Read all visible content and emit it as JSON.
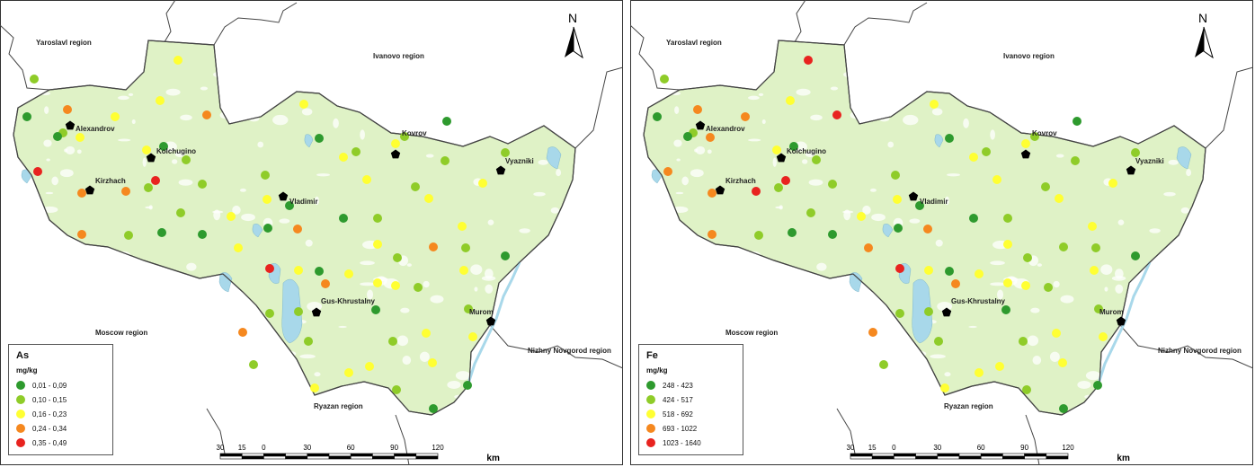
{
  "maps": [
    {
      "id": "left",
      "legend": {
        "title": "As",
        "unit": "mg/kg",
        "classes": [
          {
            "label": "0,01 - 0,09",
            "color": "#2e9a2e"
          },
          {
            "label": "0,10 - 0,15",
            "color": "#8fcc29"
          },
          {
            "label": "0,16 - 0,23",
            "color": "#ffff33"
          },
          {
            "label": "0,24 - 0,34",
            "color": "#f5881f"
          },
          {
            "label": "0,35 - 0,49",
            "color": "#e8231f"
          }
        ]
      }
    },
    {
      "id": "right",
      "legend": {
        "title": "Fe",
        "unit": "mg/kg",
        "classes": [
          {
            "label": "248 - 423",
            "color": "#2e9a2e"
          },
          {
            "label": "424 - 517",
            "color": "#8fcc29"
          },
          {
            "label": "518 - 692",
            "color": "#ffff33"
          },
          {
            "label": "693 - 1022",
            "color": "#f5881f"
          },
          {
            "label": "1023 - 1640",
            "color": "#e8231f"
          }
        ]
      }
    }
  ],
  "region_labels": {
    "yaroslavl": "Yaroslavl region",
    "ivanovo": "Ivanovo region",
    "moscow": "Moscow region",
    "nizhny": "Nizhny Novgorod region",
    "ryazan": "Ryazan region"
  },
  "cities": {
    "alexandrov": "Alexandrov",
    "kolchugino": "Kolchugino",
    "kovrov": "Kovrov",
    "vyazniki": "Vyazniki",
    "kirzhach": "Kirzhach",
    "vladimir": "Vladimir",
    "gus": "Gus-Khrustalny",
    "murom": "Murom"
  },
  "north_arrow": "N",
  "scale_bar": {
    "ticks": [
      "30",
      "15",
      "0",
      "30",
      "60",
      "90",
      "120"
    ],
    "unit": "km"
  },
  "colors": {
    "land": "#dff2c6",
    "water": "#a8d8ea",
    "border": "#444444"
  },
  "sample_classes": {
    "left": [
      2,
      1,
      2,
      1,
      3,
      4,
      3,
      3,
      3,
      4,
      1,
      2,
      3,
      5,
      4,
      4,
      5,
      2,
      2,
      2,
      3,
      4,
      2,
      1,
      1,
      3,
      1,
      4,
      3,
      1,
      2,
      3,
      3,
      3,
      2,
      1,
      2,
      1,
      2,
      3,
      2,
      2,
      3,
      3,
      2,
      3,
      3,
      3,
      3,
      1,
      2,
      4,
      2,
      5,
      3,
      1,
      4,
      2,
      2,
      1,
      3,
      2,
      2,
      3,
      1,
      3,
      1,
      3,
      3,
      3,
      2,
      2,
      4,
      2,
      3,
      2,
      1,
      3
    ],
    "right": [
      2,
      1,
      2,
      1,
      4,
      4,
      4,
      5,
      3,
      5,
      1,
      2,
      3,
      4,
      4,
      5,
      5,
      2,
      2,
      2,
      3,
      4,
      2,
      1,
      1,
      4,
      1,
      4,
      3,
      1,
      2,
      3,
      3,
      3,
      2,
      1,
      2,
      1,
      2,
      3,
      2,
      2,
      3,
      3,
      2,
      3,
      3,
      3,
      3,
      1,
      2,
      2,
      2,
      5,
      3,
      1,
      4,
      2,
      2,
      1,
      3,
      2,
      2,
      3,
      1,
      3,
      1,
      3,
      3,
      3,
      2,
      2,
      4,
      2,
      3,
      2,
      1,
      3
    ]
  }
}
